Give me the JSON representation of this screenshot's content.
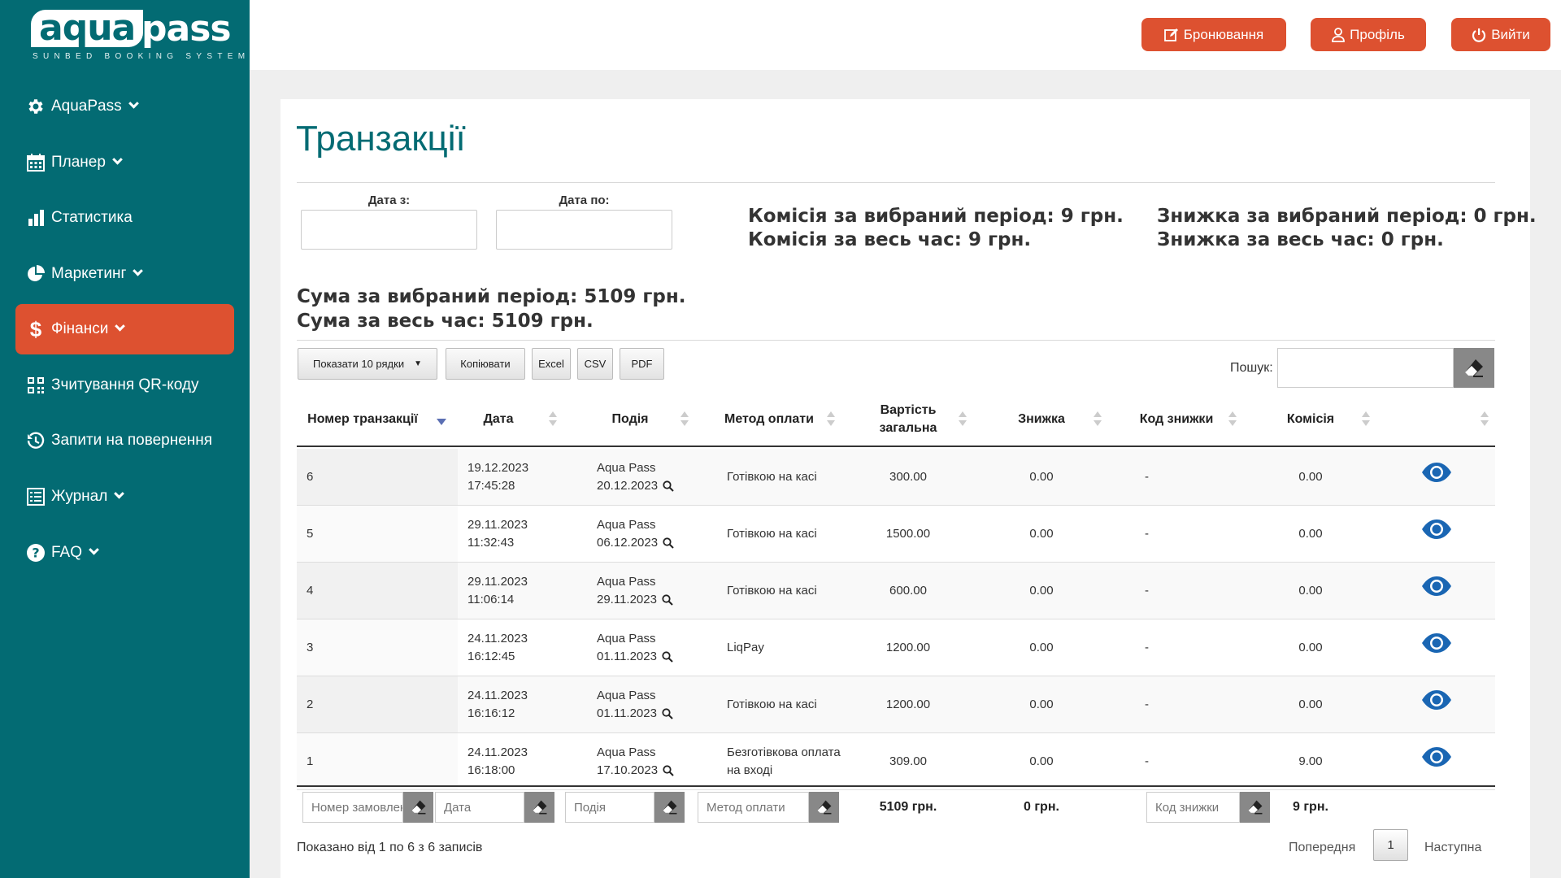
{
  "brand": {
    "word1": "aqua",
    "word2": "pass",
    "tagline": "SUNBED BOOKING SYSTEM"
  },
  "sidebar": {
    "items": [
      {
        "label": "AquaPass",
        "icon": "gear-icon",
        "has_submenu": true
      },
      {
        "label": "Планер",
        "icon": "calendar-icon",
        "has_submenu": true
      },
      {
        "label": "Статистика",
        "icon": "bar-chart-icon",
        "has_submenu": false
      },
      {
        "label": "Маркетинг",
        "icon": "pie-chart-icon",
        "has_submenu": true
      },
      {
        "label": "Фінанси",
        "icon": "dollar-icon",
        "has_submenu": true,
        "active": true
      },
      {
        "label": "Зчитування QR-коду",
        "icon": "qr-code-icon",
        "has_submenu": false
      },
      {
        "label": "Запити на повернення",
        "icon": "history-icon",
        "has_submenu": false
      },
      {
        "label": "Журнал",
        "icon": "list-icon",
        "has_submenu": true
      },
      {
        "label": "FAQ",
        "icon": "question-icon",
        "has_submenu": true
      }
    ]
  },
  "header": {
    "booking_label": "Бронювання",
    "profile_label": "Профіль",
    "logout_label": "Вийти"
  },
  "page": {
    "title": "Транзакції",
    "date_from_label": "Дата з:",
    "date_to_label": "Дата по:",
    "date_from_value": "",
    "date_to_value": "",
    "commission_period": "Комісія за вибраний період: 9 грн.",
    "commission_all": "Комісія за весь час: 9 грн.",
    "discount_period": "Знижка за вибраний період: 0 грн.",
    "discount_all": "Знижка за весь час: 0 грн.",
    "sum_period": "Сума за вибраний період: 5109 грн.",
    "sum_all": "Сума за весь час: 5109 грн."
  },
  "toolbar": {
    "show_rows": "Показати 10 рядки",
    "copy": "Копіювати",
    "excel": "Excel",
    "csv": "CSV",
    "pdf": "PDF",
    "search_label": "Пошук:",
    "search_value": ""
  },
  "table": {
    "columns": [
      "Номер транзакції",
      "Дата",
      "Подія",
      "Метод оплати",
      "Вартість загальна",
      "Знижка",
      "Код знижки",
      "Комісія",
      ""
    ],
    "rows": [
      {
        "id": "6",
        "date": "19.12.2023",
        "time": "17:45:28",
        "event": "Aqua Pass",
        "event_date": "20.12.2023",
        "method": "Готівкою на касі",
        "total": "300.00",
        "discount": "0.00",
        "code": "-",
        "commission": "0.00"
      },
      {
        "id": "5",
        "date": "29.11.2023",
        "time": "11:32:43",
        "event": "Aqua Pass",
        "event_date": "06.12.2023",
        "method": "Готівкою на касі",
        "total": "1500.00",
        "discount": "0.00",
        "code": "-",
        "commission": "0.00"
      },
      {
        "id": "4",
        "date": "29.11.2023",
        "time": "11:06:14",
        "event": "Aqua Pass",
        "event_date": "29.11.2023",
        "method": "Готівкою на касі",
        "total": "600.00",
        "discount": "0.00",
        "code": "-",
        "commission": "0.00"
      },
      {
        "id": "3",
        "date": "24.11.2023",
        "time": "16:12:45",
        "event": "Aqua Pass",
        "event_date": "01.11.2023",
        "method": "LiqPay",
        "total": "1200.00",
        "discount": "0.00",
        "code": "-",
        "commission": "0.00"
      },
      {
        "id": "2",
        "date": "24.11.2023",
        "time": "16:16:12",
        "event": "Aqua Pass",
        "event_date": "01.11.2023",
        "method": "Готівкою на касі",
        "total": "1200.00",
        "discount": "0.00",
        "code": "-",
        "commission": "0.00"
      },
      {
        "id": "1",
        "date": "24.11.2023",
        "time": "16:18:00",
        "event": "Aqua Pass",
        "event_date": "17.10.2023",
        "method": "Безготівкова оплата на вході",
        "total": "309.00",
        "discount": "0.00",
        "code": "-",
        "commission": "9.00"
      }
    ],
    "footer": {
      "filter_order": "Номер замовлення",
      "filter_date": "Дата",
      "filter_event": "Подія",
      "filter_method": "Метод оплати",
      "total": "5109 грн.",
      "discount": "0 грн.",
      "filter_code": "Код знижки",
      "commission": "9 грн."
    }
  },
  "pagination": {
    "info": "Показано від 1 по 6 з 6 записів",
    "prev": "Попередня",
    "current": "1",
    "next": "Наступна"
  },
  "colors": {
    "sidebar": "#036b73",
    "accent": "#dd5130",
    "eye": "#1a66b3"
  }
}
